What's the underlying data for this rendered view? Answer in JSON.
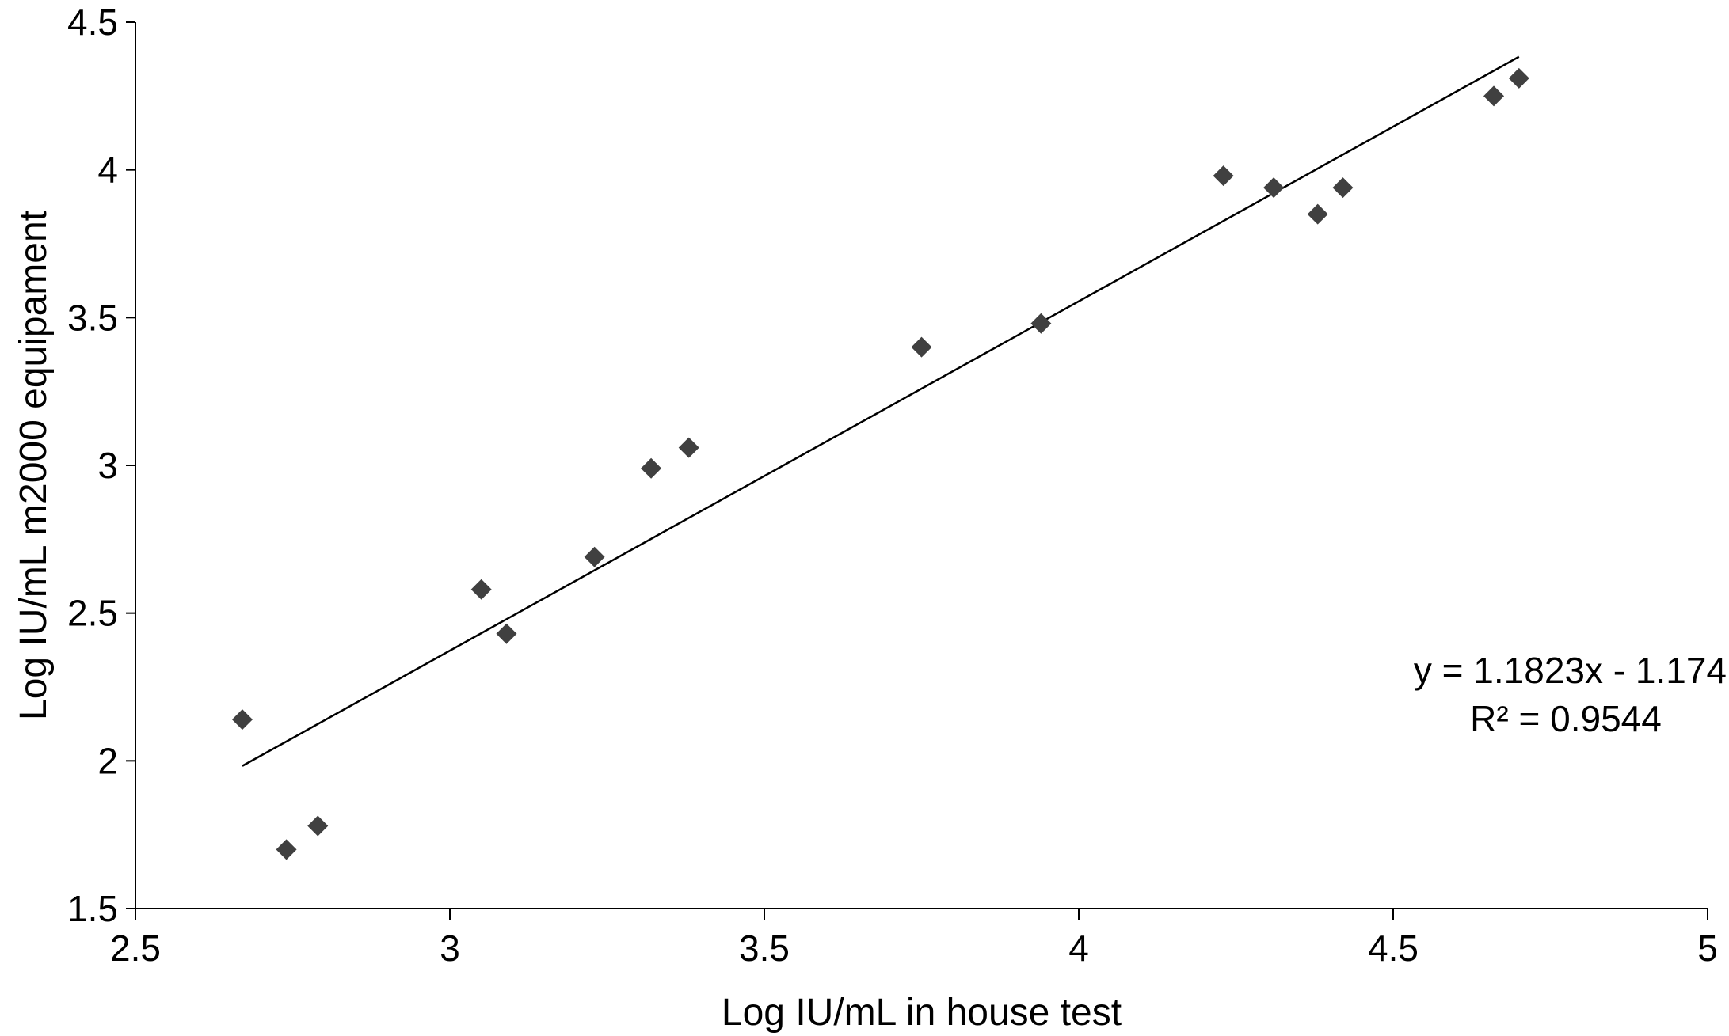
{
  "chart_data": {
    "type": "scatter",
    "title": "",
    "xlabel": "Log IU/mL in house test",
    "ylabel": "Log IU/mL m2000 equipament",
    "xlim": [
      2.5,
      5
    ],
    "ylim": [
      1.5,
      4.5
    ],
    "x_ticks": [
      "2.5",
      "3",
      "3.5",
      "4",
      "4.5",
      "5"
    ],
    "y_ticks": [
      "1.5",
      "2",
      "2.5",
      "3",
      "3.5",
      "4",
      "4.5"
    ],
    "grid": false,
    "legend": "none",
    "marker": "diamond",
    "point_color": "#404040",
    "points": [
      {
        "x": 2.67,
        "y": 2.14
      },
      {
        "x": 2.74,
        "y": 1.7
      },
      {
        "x": 2.79,
        "y": 1.78
      },
      {
        "x": 3.05,
        "y": 2.58
      },
      {
        "x": 3.09,
        "y": 2.43
      },
      {
        "x": 3.23,
        "y": 2.69
      },
      {
        "x": 3.32,
        "y": 2.99
      },
      {
        "x": 3.38,
        "y": 3.06
      },
      {
        "x": 3.75,
        "y": 3.4
      },
      {
        "x": 3.94,
        "y": 3.48
      },
      {
        "x": 4.23,
        "y": 3.98
      },
      {
        "x": 4.31,
        "y": 3.94
      },
      {
        "x": 4.38,
        "y": 3.85
      },
      {
        "x": 4.42,
        "y": 3.94
      },
      {
        "x": 4.66,
        "y": 4.25
      },
      {
        "x": 4.7,
        "y": 4.31
      }
    ],
    "trendline": {
      "slope": 1.1823,
      "intercept": -1.174,
      "x_range": [
        2.67,
        4.7
      ],
      "equation_label": "y = 1.1823x - 1.174",
      "r2_label": "R² = 0.9544"
    }
  }
}
